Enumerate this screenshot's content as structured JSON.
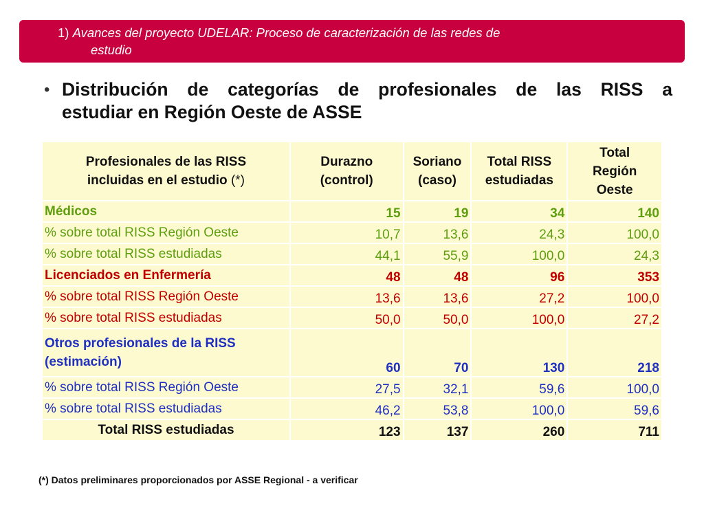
{
  "banner": {
    "number": "1)",
    "title_line1": "Avances del proyecto UDELAR: Proceso de caracterización de las redes de",
    "title_line2": "estudio",
    "color": "#c8003f"
  },
  "bullet": {
    "line1": "Distribución de categorías de profesionales de las RISS a",
    "line2": "estudiar en Región Oeste de ASSE"
  },
  "table": {
    "headers": {
      "col1_line1": "Profesionales de las RISS",
      "col1_line2": "incluidas en el estudio",
      "col1_note": "(*)",
      "col2_line1": "Durazno",
      "col2_line2": "(control)",
      "col3_line1": "Soriano",
      "col3_line2": "(caso)",
      "col4_line1": "Total RISS",
      "col4_line2": "estudiadas",
      "col5_line1": "Total",
      "col5_line2": "Región",
      "col5_line3": "Oeste"
    },
    "rows": [
      {
        "label": "Médicos",
        "durazno": "15",
        "soriano": "19",
        "total_riss": "34",
        "total_region": "140"
      },
      {
        "label": "% sobre total RISS Región Oeste",
        "durazno": "10,7",
        "soriano": "13,6",
        "total_riss": "24,3",
        "total_region": "100,0"
      },
      {
        "label": "% sobre total RISS estudiadas",
        "durazno": "44,1",
        "soriano": "55,9",
        "total_riss": "100,0",
        "total_region": "24,3"
      },
      {
        "label": "Licenciados en Enfermería",
        "durazno": "48",
        "soriano": "48",
        "total_riss": "96",
        "total_region": "353"
      },
      {
        "label": "% sobre total RISS Región Oeste",
        "durazno": "13,6",
        "soriano": "13,6",
        "total_riss": "27,2",
        "total_region": "100,0"
      },
      {
        "label": "% sobre total RISS estudiadas",
        "durazno": "50,0",
        "soriano": "50,0",
        "total_riss": "100,0",
        "total_region": "27,2"
      },
      {
        "label_line1": "Otros profesionales de la RISS",
        "label_line2": "(estimación)",
        "durazno": "60",
        "soriano": "70",
        "total_riss": "130",
        "total_region": "218"
      },
      {
        "label": "% sobre total RISS Región Oeste",
        "durazno": "27,5",
        "soriano": "32,1",
        "total_riss": "59,6",
        "total_region": "100,0"
      },
      {
        "label": "% sobre total RISS estudiadas",
        "durazno": "46,2",
        "soriano": "53,8",
        "total_riss": "100,0",
        "total_region": "59,6"
      },
      {
        "label": "Total RISS estudiadas",
        "durazno": "123",
        "soriano": "137",
        "total_riss": "260",
        "total_region": "711"
      }
    ],
    "colors": {
      "background": "#fdfad0",
      "green": "#5e9e0f",
      "red": "#c00000",
      "blue": "#1f2fc0"
    }
  },
  "footnote": "(*) Datos preliminares proporcionados por ASSE Regional - a verificar"
}
